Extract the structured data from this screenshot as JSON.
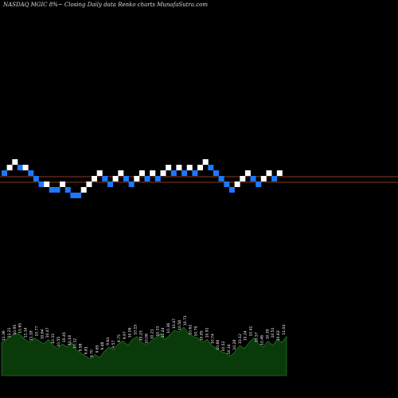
{
  "header": {
    "title": "NASDAQ MGIC 8%~  Closing Daily data  Renko  charts MunafaSutra.com"
  },
  "colors": {
    "background": "#000000",
    "up_brick": "#ffffff",
    "down_brick": "#1e78ff",
    "reference_line": "#b0522c",
    "volume_fill": "#0a3a0a",
    "volume_edge": "#2e8b2e"
  },
  "chart_data": [
    {
      "type": "renko",
      "title": "NASDAQ MGIC 8%~  Closing Daily data  Renko  charts MunafaSutra.com",
      "bricks": [
        {
          "dir": "down",
          "level": 0
        },
        {
          "dir": "up",
          "level": 1
        },
        {
          "dir": "up",
          "level": 2
        },
        {
          "dir": "down",
          "level": 1
        },
        {
          "dir": "up",
          "level": 1
        },
        {
          "dir": "down",
          "level": 0
        },
        {
          "dir": "down",
          "level": -1
        },
        {
          "dir": "down",
          "level": -2
        },
        {
          "dir": "up",
          "level": -2
        },
        {
          "dir": "down",
          "level": -3
        },
        {
          "dir": "down",
          "level": -3
        },
        {
          "dir": "up",
          "level": -2
        },
        {
          "dir": "down",
          "level": -3
        },
        {
          "dir": "down",
          "level": -4
        },
        {
          "dir": "down",
          "level": -4
        },
        {
          "dir": "up",
          "level": -3
        },
        {
          "dir": "up",
          "level": -2
        },
        {
          "dir": "up",
          "level": -1
        },
        {
          "dir": "up",
          "level": 0
        },
        {
          "dir": "down",
          "level": -1
        },
        {
          "dir": "down",
          "level": -2
        },
        {
          "dir": "up",
          "level": -1
        },
        {
          "dir": "up",
          "level": 0
        },
        {
          "dir": "down",
          "level": -1
        },
        {
          "dir": "down",
          "level": -2
        },
        {
          "dir": "up",
          "level": -1
        },
        {
          "dir": "up",
          "level": 0
        },
        {
          "dir": "down",
          "level": -1
        },
        {
          "dir": "up",
          "level": 0
        },
        {
          "dir": "down",
          "level": -1
        },
        {
          "dir": "up",
          "level": 0
        },
        {
          "dir": "up",
          "level": 1
        },
        {
          "dir": "down",
          "level": 0
        },
        {
          "dir": "up",
          "level": 1
        },
        {
          "dir": "down",
          "level": 0
        },
        {
          "dir": "up",
          "level": 1
        },
        {
          "dir": "down",
          "level": 0
        },
        {
          "dir": "up",
          "level": 1
        },
        {
          "dir": "up",
          "level": 2
        },
        {
          "dir": "down",
          "level": 1
        },
        {
          "dir": "down",
          "level": 0
        },
        {
          "dir": "down",
          "level": -1
        },
        {
          "dir": "down",
          "level": -2
        },
        {
          "dir": "down",
          "level": -3
        },
        {
          "dir": "up",
          "level": -2
        },
        {
          "dir": "up",
          "level": -1
        },
        {
          "dir": "up",
          "level": 0
        },
        {
          "dir": "down",
          "level": -1
        },
        {
          "dir": "down",
          "level": -2
        },
        {
          "dir": "up",
          "level": -1
        },
        {
          "dir": "up",
          "level": 0
        },
        {
          "dir": "down",
          "level": -1
        },
        {
          "dir": "up",
          "level": 0
        }
      ],
      "reference_lines": [
        "upper",
        "lower"
      ]
    },
    {
      "type": "area",
      "series": [
        {
          "values": [
            22,
            24,
            26,
            28,
            27,
            24,
            22,
            25,
            23,
            21,
            24,
            20,
            18,
            21,
            19,
            22,
            17,
            15,
            13,
            11,
            14,
            12,
            16,
            19,
            17,
            21,
            23,
            20,
            24,
            26,
            22,
            20,
            23,
            25,
            28,
            24,
            27,
            30,
            29,
            32,
            28,
            26,
            25,
            22,
            24,
            20,
            18,
            16,
            15,
            13,
            16,
            20,
            18,
            22,
            25,
            21,
            19,
            23,
            20,
            24,
            22,
            26
          ]
        }
      ],
      "value_labels": [
        "11.36",
        "11.21",
        "10.95",
        "10.65",
        "11.14",
        "11.18",
        "10.77",
        "10.64",
        "10.47",
        "10.33",
        "10.55",
        "10.45",
        "10.18",
        "10.12",
        "9.98",
        "9.81",
        "9.70",
        "9.65",
        "9.48",
        "9.64",
        "9.57",
        "9.75",
        "9.97",
        "10.06",
        "10.15",
        "10.23",
        "10.08",
        "10.21",
        "10.33",
        "10.44",
        "10.36",
        "10.47",
        "10.58",
        "10.71",
        "10.62",
        "10.79",
        "10.85",
        "10.91",
        "10.74",
        "10.66",
        "10.52",
        "10.34",
        "10.28",
        "10.12",
        "10.24",
        "10.41",
        "10.57",
        "10.46",
        "10.39",
        "10.51",
        "10.63",
        "11.04"
      ]
    }
  ]
}
